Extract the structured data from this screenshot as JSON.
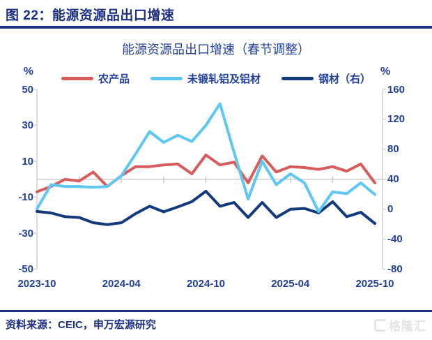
{
  "header": {
    "title": "图 22：能源资源品出口增速"
  },
  "chart": {
    "title": "能源资源品出口增速（春节调整）",
    "left_axis_unit": "%",
    "right_axis_unit": "%"
  },
  "footer": {
    "source": "资料来源：CEIC，申万宏源研究",
    "watermark": "格隆汇"
  },
  "chart_data": {
    "type": "line",
    "title": "能源资源品出口增速（春节调整）",
    "x": [
      "2023-10",
      "2023-11",
      "2023-12",
      "2024-01",
      "2024-02",
      "2024-03",
      "2024-04",
      "2024-05",
      "2024-06",
      "2024-07",
      "2024-08",
      "2024-09",
      "2024-10",
      "2024-11",
      "2024-12",
      "2025-01",
      "2025-02",
      "2025-03",
      "2025-04",
      "2025-05",
      "2025-06",
      "2025-07",
      "2025-08",
      "2025-09",
      "2025-10"
    ],
    "x_tick_labels": [
      "2023-10",
      "2024-04",
      "2024-10",
      "2025-04",
      "2025-10"
    ],
    "left_ylim": [
      -50,
      50
    ],
    "right_ylim": [
      -80,
      160
    ],
    "left_ticks": [
      50,
      30,
      10,
      -10,
      -30,
      -50
    ],
    "right_ticks": [
      160,
      120,
      80,
      40,
      0,
      -40,
      -80
    ],
    "grid": "zero-line-only",
    "legend_position": "top",
    "series": [
      {
        "name": "农产品",
        "axis": "left",
        "color": "#d95c5c",
        "values": [
          -7,
          -4,
          0,
          -1,
          4,
          -4,
          2,
          7,
          7,
          8,
          8.5,
          3,
          13.5,
          8,
          9.5,
          -2,
          13,
          4,
          7,
          6.5,
          5.5,
          7,
          4.5,
          8.5,
          -2
        ]
      },
      {
        "name": "未锻轧铝及铝材",
        "axis": "left",
        "color": "#5ec8f3",
        "values": [
          -16.5,
          -3,
          -4,
          -4,
          -4.5,
          -4,
          2,
          14,
          26.5,
          20.5,
          24.5,
          21,
          30,
          42,
          15,
          -11,
          10,
          -3,
          3,
          -2,
          -18,
          -7,
          -8,
          -2,
          -8.5
        ]
      },
      {
        "name": "钢材（右）",
        "axis": "right",
        "color": "#123a7c",
        "values": [
          -3,
          -5,
          -10,
          -11,
          -18,
          -20.5,
          -18,
          -6,
          4,
          -3.5,
          3,
          10,
          24,
          4,
          9,
          -11,
          9,
          -11,
          0,
          1,
          -5,
          10,
          -10,
          -4,
          -19
        ]
      }
    ]
  }
}
